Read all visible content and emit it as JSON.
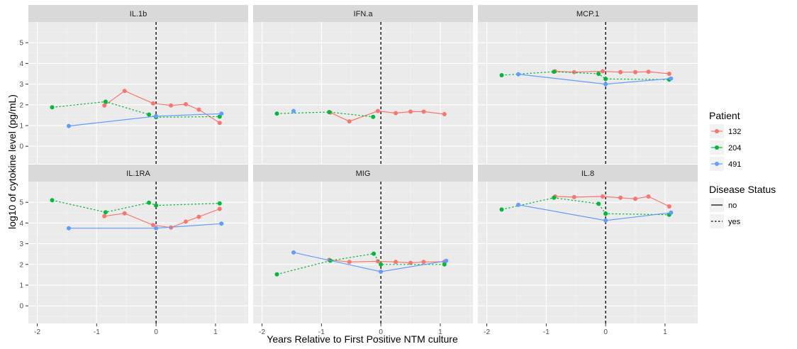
{
  "chart_data": {
    "type": "line",
    "xlabel": "Years Relative to First Positive NTM culture",
    "ylabel": "log10 of cytokine level (pg/mL)",
    "xlim": [
      -2.15,
      1.55
    ],
    "ylim": [
      -0.85,
      6.0
    ],
    "x_ticks": [
      -2,
      -1,
      0,
      1
    ],
    "y_ticks": [
      0,
      1,
      2,
      3,
      4,
      5
    ],
    "grid": true,
    "reference_line_x": 0,
    "legend": {
      "placement": "right",
      "patient_title": "Patient",
      "status_title": "Disease Status",
      "patients": [
        {
          "id": "132",
          "color": "#F8766D"
        },
        {
          "id": "204",
          "color": "#00BA38"
        },
        {
          "id": "491",
          "color": "#619CFF"
        }
      ],
      "statuses": [
        {
          "label": "no",
          "dash": "solid"
        },
        {
          "label": "yes",
          "dash": "dotted"
        }
      ]
    },
    "panels": [
      {
        "name": "IL.1b",
        "series": [
          {
            "patient": "132",
            "status": "no",
            "points": [
              [
                -0.87,
                1.97
              ],
              [
                -0.53,
                2.67
              ],
              [
                -0.05,
                2.07
              ],
              [
                0.25,
                1.97
              ],
              [
                0.5,
                2.03
              ],
              [
                0.72,
                1.77
              ],
              [
                1.07,
                1.13
              ]
            ]
          },
          {
            "patient": "204",
            "status": "yes",
            "points": [
              [
                -1.75,
                1.88
              ],
              [
                -0.85,
                2.15
              ],
              [
                -0.12,
                1.53
              ],
              [
                0.0,
                1.4
              ],
              [
                1.07,
                1.43
              ]
            ]
          },
          {
            "patient": "491",
            "status": "no",
            "points": [
              [
                -1.47,
                0.98
              ],
              [
                0.0,
                1.45
              ],
              [
                1.1,
                1.57
              ]
            ]
          }
        ]
      },
      {
        "name": "IFN.a",
        "series": [
          {
            "patient": "132",
            "status": "no",
            "points": [
              [
                -0.85,
                1.63
              ],
              [
                -0.53,
                1.2
              ],
              [
                -0.05,
                1.7
              ],
              [
                0.25,
                1.6
              ],
              [
                0.5,
                1.67
              ],
              [
                0.72,
                1.67
              ],
              [
                1.07,
                1.55
              ]
            ]
          },
          {
            "patient": "204",
            "status": "yes",
            "points": [
              [
                -1.75,
                1.58
              ],
              [
                -0.87,
                1.65
              ],
              [
                -0.13,
                1.42
              ]
            ]
          },
          {
            "patient": "491",
            "status": "no",
            "points": [
              [
                -1.47,
                1.7
              ]
            ]
          }
        ]
      },
      {
        "name": "MCP.1",
        "series": [
          {
            "patient": "132",
            "status": "no",
            "points": [
              [
                -0.85,
                3.62
              ],
              [
                -0.53,
                3.58
              ],
              [
                -0.05,
                3.62
              ],
              [
                0.25,
                3.58
              ],
              [
                0.5,
                3.58
              ],
              [
                0.72,
                3.6
              ],
              [
                1.07,
                3.5
              ]
            ]
          },
          {
            "patient": "204",
            "status": "yes",
            "points": [
              [
                -1.75,
                3.43
              ],
              [
                -0.87,
                3.6
              ],
              [
                -0.12,
                3.5
              ],
              [
                0.0,
                3.25
              ],
              [
                1.07,
                3.22
              ]
            ]
          },
          {
            "patient": "491",
            "status": "no",
            "points": [
              [
                -1.47,
                3.48
              ],
              [
                0.0,
                3.0
              ],
              [
                1.1,
                3.27
              ]
            ]
          }
        ]
      },
      {
        "name": "IL.1RA",
        "series": [
          {
            "patient": "132",
            "status": "no",
            "points": [
              [
                -0.87,
                4.33
              ],
              [
                -0.53,
                4.47
              ],
              [
                -0.05,
                3.9
              ],
              [
                0.25,
                3.78
              ],
              [
                0.5,
                4.07
              ],
              [
                0.72,
                4.3
              ],
              [
                1.07,
                4.68
              ]
            ]
          },
          {
            "patient": "204",
            "status": "yes",
            "points": [
              [
                -1.75,
                5.1
              ],
              [
                -0.85,
                4.52
              ],
              [
                -0.12,
                4.98
              ],
              [
                0.0,
                4.85
              ],
              [
                1.07,
                4.95
              ]
            ]
          },
          {
            "patient": "491",
            "status": "no",
            "points": [
              [
                -1.47,
                3.75
              ],
              [
                0.0,
                3.75
              ],
              [
                1.1,
                3.97
              ]
            ]
          }
        ]
      },
      {
        "name": "MIG",
        "series": [
          {
            "patient": "132",
            "status": "no",
            "points": [
              [
                -0.87,
                2.22
              ],
              [
                -0.53,
                2.12
              ],
              [
                -0.05,
                2.15
              ],
              [
                0.25,
                2.12
              ],
              [
                0.5,
                2.08
              ],
              [
                0.72,
                2.12
              ],
              [
                1.07,
                2.13
              ]
            ]
          },
          {
            "patient": "204",
            "status": "yes",
            "points": [
              [
                -1.75,
                1.52
              ],
              [
                -0.85,
                2.18
              ],
              [
                -0.12,
                2.52
              ],
              [
                0.0,
                2.0
              ],
              [
                1.07,
                2.0
              ]
            ]
          },
          {
            "patient": "491",
            "status": "no",
            "points": [
              [
                -1.47,
                2.58
              ],
              [
                0.0,
                1.65
              ],
              [
                1.1,
                2.17
              ]
            ]
          }
        ]
      },
      {
        "name": "IL.8",
        "series": [
          {
            "patient": "132",
            "status": "no",
            "points": [
              [
                -0.85,
                5.28
              ],
              [
                -0.53,
                5.25
              ],
              [
                -0.05,
                5.28
              ],
              [
                0.25,
                5.22
              ],
              [
                0.5,
                5.17
              ],
              [
                0.72,
                5.28
              ],
              [
                1.07,
                4.8
              ]
            ]
          },
          {
            "patient": "204",
            "status": "yes",
            "points": [
              [
                -1.75,
                4.65
              ],
              [
                -0.87,
                5.22
              ],
              [
                -0.12,
                4.93
              ],
              [
                0.0,
                4.45
              ],
              [
                1.07,
                4.4
              ]
            ]
          },
          {
            "patient": "491",
            "status": "no",
            "points": [
              [
                -1.47,
                4.88
              ],
              [
                0.0,
                4.12
              ],
              [
                1.1,
                4.5
              ]
            ]
          }
        ]
      }
    ]
  }
}
